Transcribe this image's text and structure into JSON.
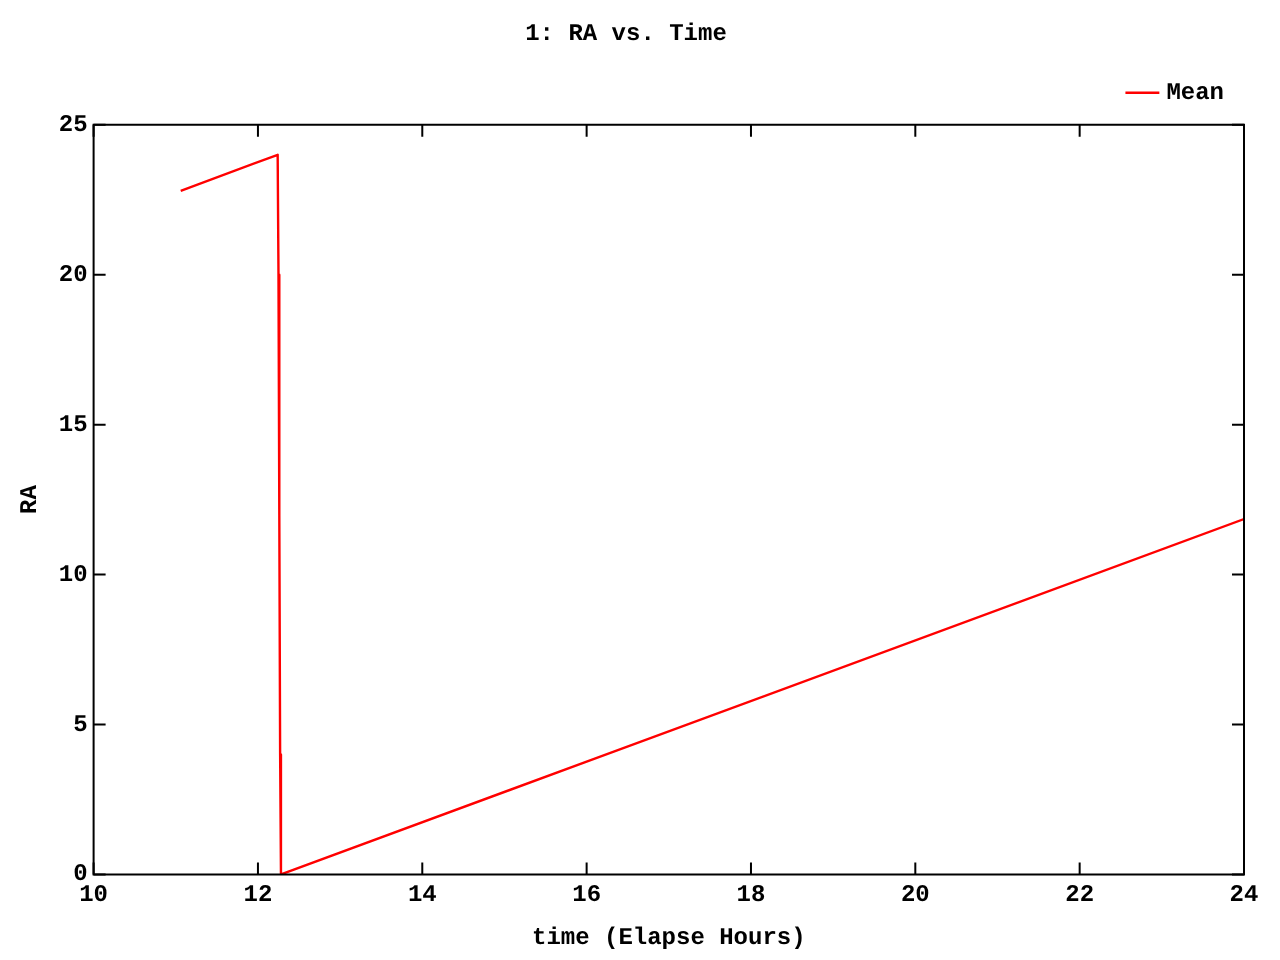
{
  "chart_data": {
    "type": "line",
    "title": "1: RA vs. Time",
    "xlabel": "time (Elapse Hours)",
    "ylabel": "RA",
    "series": [
      {
        "name": "Mean",
        "color": "#ff0000",
        "x": [
          11.06,
          12.24,
          12.25,
          12.26,
          12.27,
          12.28,
          24
        ],
        "values": [
          22.8,
          24,
          20,
          12,
          4,
          0,
          11.85
        ]
      }
    ],
    "xlim": [
      10,
      24
    ],
    "xticks": [
      10,
      12,
      14,
      16,
      18,
      20,
      22,
      24
    ],
    "ylim": [
      0,
      25
    ],
    "yticks": [
      0,
      5,
      10,
      15,
      20,
      25
    ],
    "grid": false,
    "legend": "top right",
    "marker": "none",
    "line_style": "solid"
  }
}
